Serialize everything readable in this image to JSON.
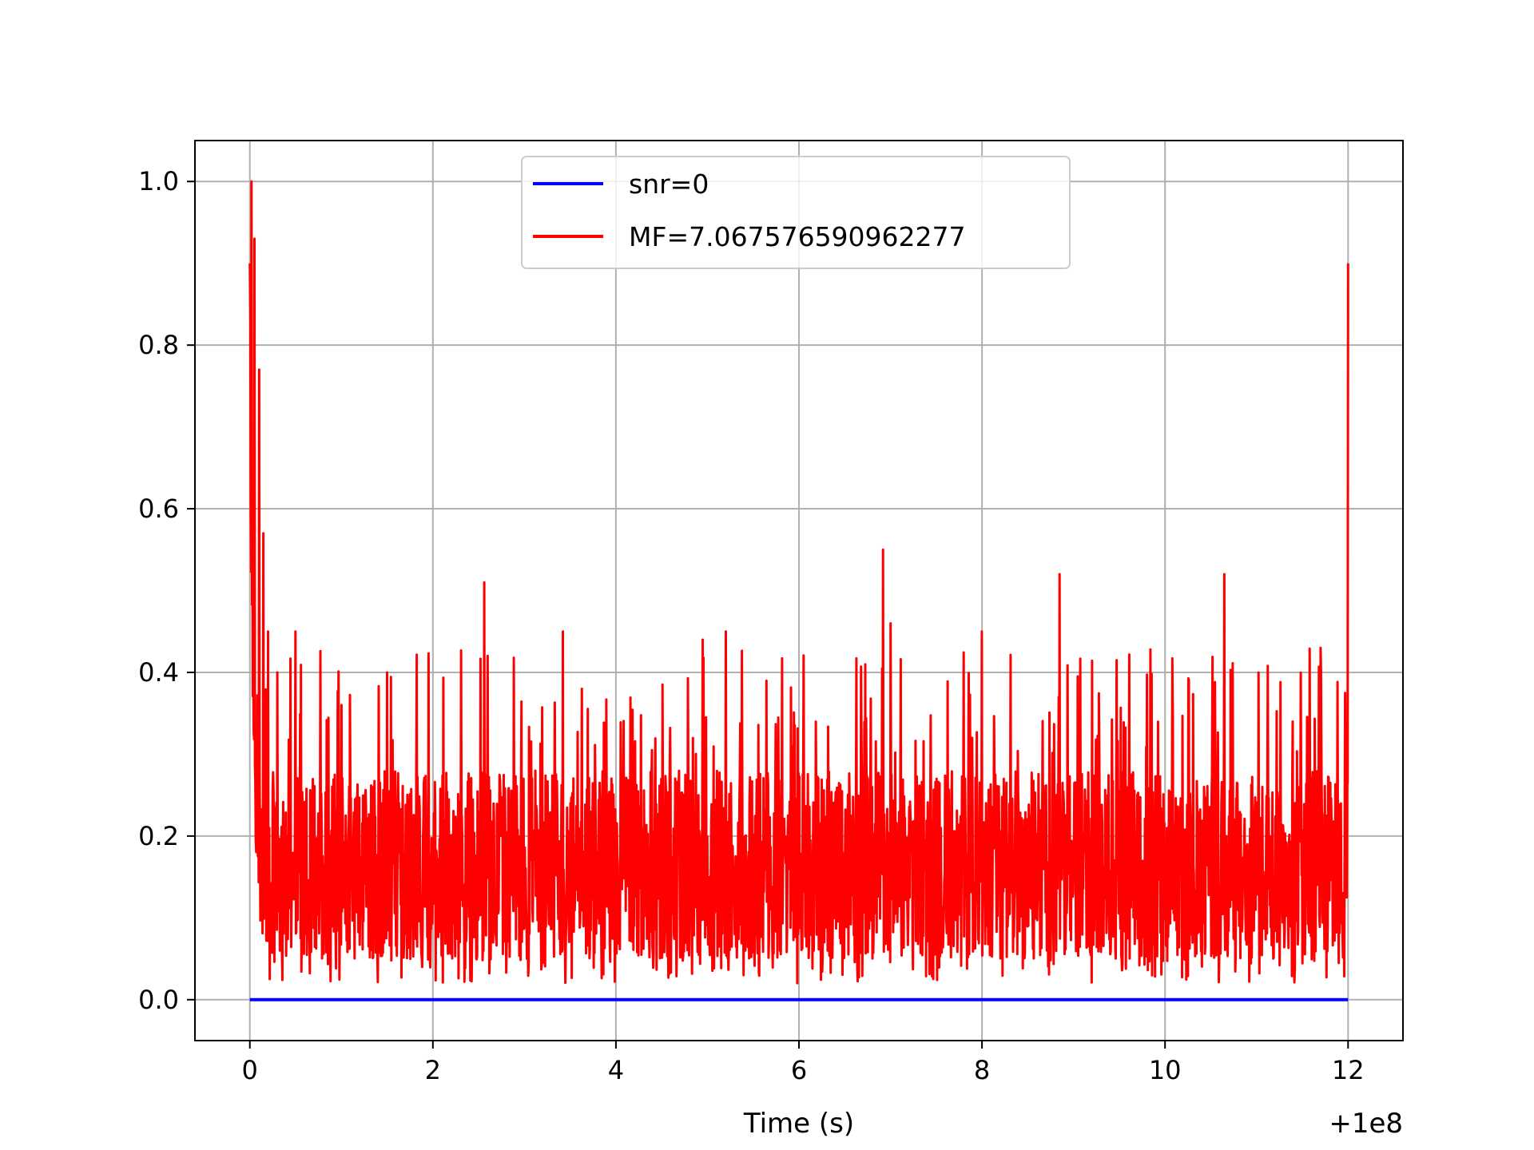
{
  "chart_data": {
    "type": "line",
    "title": "",
    "xlabel": "Time (s)",
    "ylabel": "",
    "x_offset_label": "+1e8",
    "xlim": [
      -0.6,
      12.6
    ],
    "ylim": [
      -0.05,
      1.05
    ],
    "x_ticks": [
      0,
      2,
      4,
      6,
      8,
      10,
      12
    ],
    "x_tick_labels": [
      "0",
      "2",
      "4",
      "6",
      "8",
      "10",
      "12"
    ],
    "y_ticks": [
      0.0,
      0.2,
      0.4,
      0.6,
      0.8,
      1.0
    ],
    "y_tick_labels": [
      "0.0",
      "0.2",
      "0.4",
      "0.6",
      "0.8",
      "1.0"
    ],
    "grid": true,
    "legend_position": "upper-center",
    "series": [
      {
        "name": "snr=0",
        "color": "#0000ff",
        "x": [
          0,
          12
        ],
        "y": [
          0.0,
          0.0
        ]
      },
      {
        "name": "MF=7.067576590962277",
        "color": "#ff0000",
        "x_range": [
          0,
          12
        ],
        "description_points": {
          "x": [
            0.0,
            0.02,
            0.05,
            0.1,
            0.15,
            0.2,
            0.3,
            0.5,
            1.0,
            1.5,
            2.56,
            3.42,
            4.95,
            5.2,
            6.92,
            7.0,
            8.0,
            8.85,
            10.65,
            11.7,
            12.0
          ],
          "y": [
            0.9,
            1.0,
            0.93,
            0.77,
            0.57,
            0.45,
            0.4,
            0.45,
            0.36,
            0.4,
            0.51,
            0.45,
            0.44,
            0.45,
            0.55,
            0.46,
            0.45,
            0.52,
            0.52,
            0.43,
            0.9
          ]
        },
        "envelope": {
          "low": 0.02,
          "high": 0.32,
          "typical_band": [
            0.05,
            0.28
          ]
        }
      }
    ]
  }
}
